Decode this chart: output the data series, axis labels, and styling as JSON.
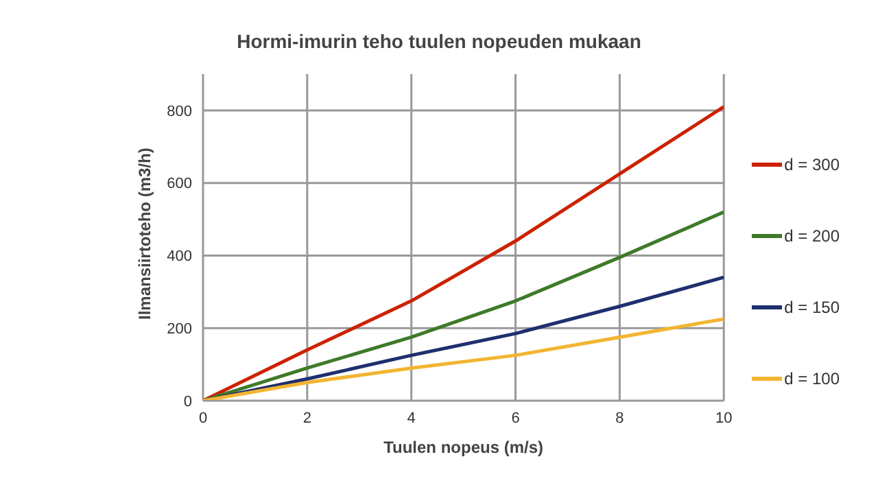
{
  "chart_data": {
    "type": "line",
    "title": "Hormi-imurin teho tuulen nopeuden mukaan",
    "xlabel": "Tuulen nopeus (m/s)",
    "ylabel": "Ilmansiirtoteho (m3/h)",
    "x": [
      0,
      2,
      4,
      6,
      8,
      10
    ],
    "series": [
      {
        "name": "d = 300",
        "color": "#cc2200",
        "values": [
          0,
          140,
          275,
          440,
          625,
          810
        ]
      },
      {
        "name": "d = 200",
        "color": "#3e7a2a",
        "values": [
          0,
          90,
          175,
          275,
          395,
          520
        ]
      },
      {
        "name": "d = 150",
        "color": "#1f2f6e",
        "values": [
          0,
          60,
          125,
          185,
          260,
          340
        ]
      },
      {
        "name": "d = 100",
        "color": "#f2b531",
        "values": [
          0,
          50,
          90,
          125,
          175,
          225
        ]
      }
    ],
    "xlim": [
      0,
      10
    ],
    "xticks": [
      0,
      2,
      4,
      6,
      8,
      10
    ],
    "ylim": [
      0,
      900
    ],
    "yticks": [
      0,
      200,
      400,
      600,
      800
    ],
    "grid": true,
    "legend": "right",
    "marker": "none",
    "line_style": "solid"
  }
}
